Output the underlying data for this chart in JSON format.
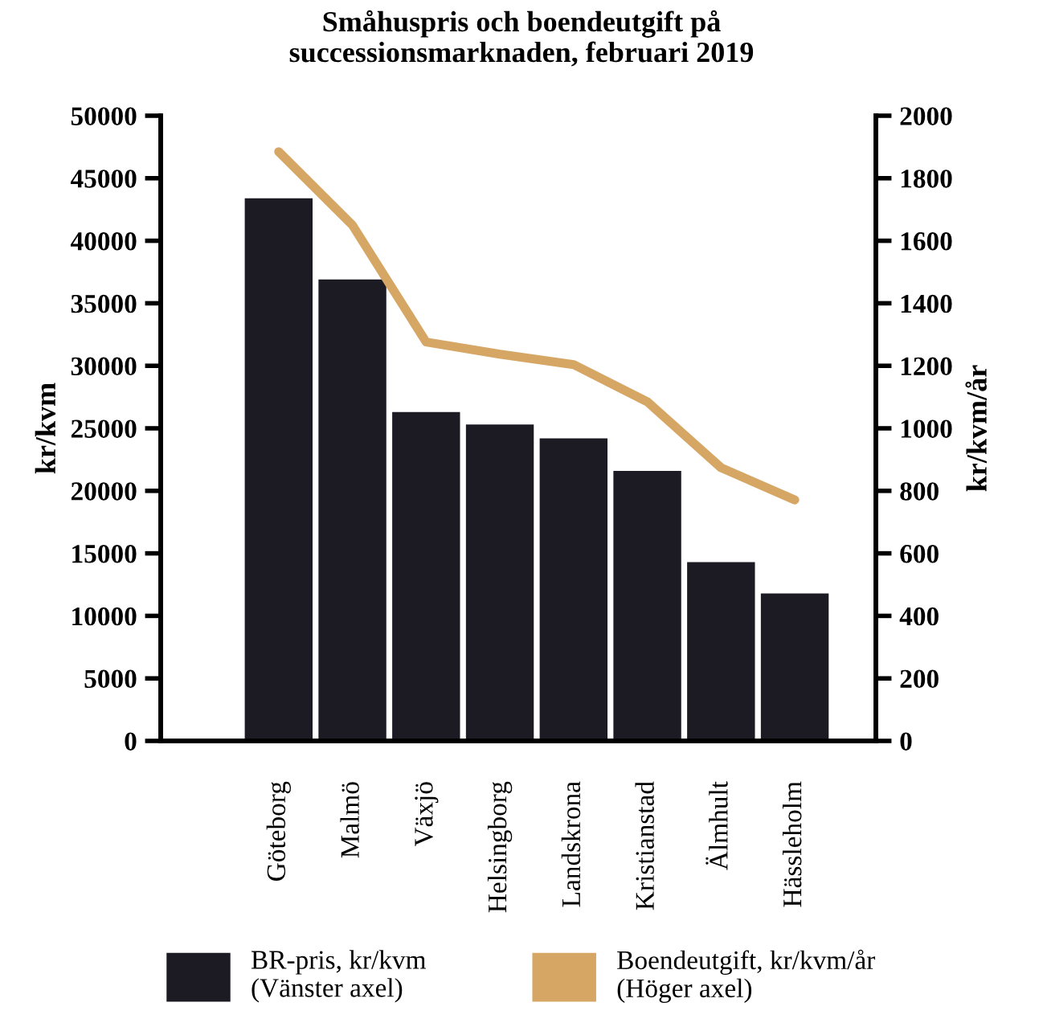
{
  "chart_data": {
    "type": "bar",
    "title": "Småhuspris och boendeutgift på\nsuccessionsmarknaden, februari 2019",
    "categories": [
      "Göteborg",
      "Malmö",
      "Växjö",
      "Helsingborg",
      "Landskrona",
      "Kristianstad",
      "Älmhult",
      "Hässleholm"
    ],
    "ylabel": "kr/kvm",
    "y2label": "kr/kvm/år",
    "series": [
      {
        "name": "BR-pris, kr/kvm\n(Vänster axel)",
        "color": "#1c1b24",
        "values": [
          43400,
          36900,
          26300,
          25300,
          24200,
          21600,
          14300,
          11800
        ]
      },
      {
        "name": "Boendeutgift, kr/kvm/år\n(Höger axel)",
        "type": "line",
        "axis": "y2",
        "color": "#d6a764",
        "values": [
          1885,
          1650,
          1276,
          1237,
          1204,
          1085,
          874,
          771
        ]
      }
    ],
    "ylim": [
      0,
      50000
    ],
    "yticks": [
      0,
      5000,
      10000,
      15000,
      20000,
      25000,
      30000,
      35000,
      40000,
      45000,
      50000
    ],
    "y2lim": [
      0,
      2000
    ],
    "y2ticks": [
      0,
      200,
      400,
      600,
      800,
      1000,
      1200,
      1400,
      1600,
      1800,
      2000
    ],
    "grid": false,
    "legend": "bottom",
    "marker": "none",
    "line_style": "solid"
  }
}
